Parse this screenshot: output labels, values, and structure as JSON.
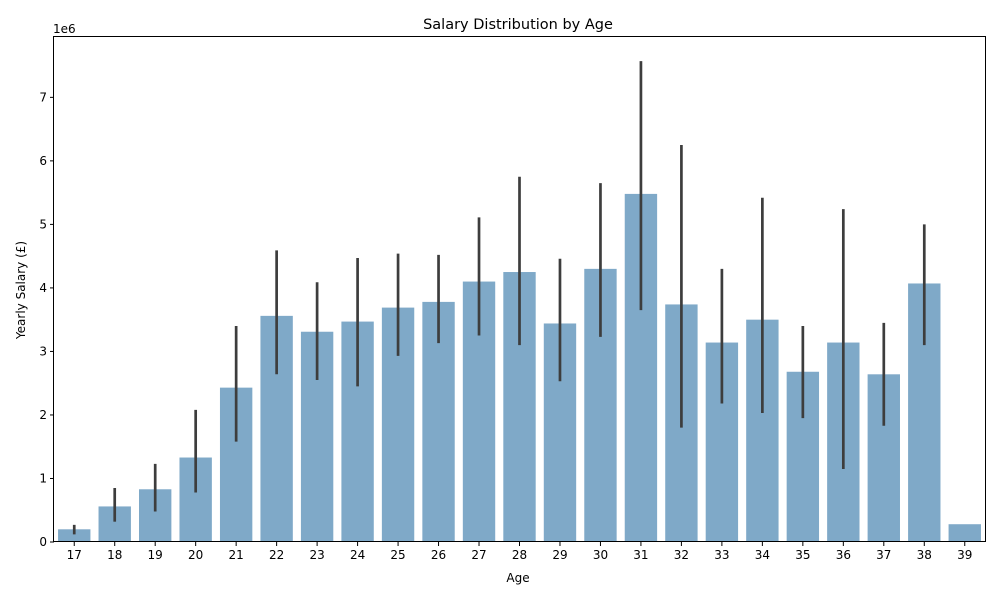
{
  "chart_data": {
    "type": "bar",
    "title": "Salary Distribution by Age",
    "xlabel": "Age",
    "ylabel": "Yearly Salary (£)",
    "y_offset_text": "1e6",
    "y_multiplier": 1000000,
    "categories": [
      "17",
      "18",
      "19",
      "20",
      "21",
      "22",
      "23",
      "24",
      "25",
      "26",
      "27",
      "28",
      "29",
      "30",
      "31",
      "32",
      "33",
      "34",
      "35",
      "36",
      "37",
      "38",
      "39"
    ],
    "values": [
      0.2,
      0.56,
      0.83,
      1.33,
      2.43,
      3.56,
      3.31,
      3.47,
      3.69,
      3.78,
      4.1,
      4.25,
      3.44,
      4.3,
      5.48,
      3.74,
      3.14,
      3.5,
      2.68,
      3.14,
      2.64,
      4.07,
      0.28
    ],
    "ci_low": [
      0.12,
      0.32,
      0.48,
      0.78,
      1.58,
      2.64,
      2.55,
      2.45,
      2.93,
      3.13,
      3.25,
      3.1,
      2.53,
      3.23,
      3.65,
      1.8,
      2.18,
      2.03,
      1.95,
      1.15,
      1.83,
      3.1,
      null
    ],
    "ci_high": [
      0.27,
      0.85,
      1.23,
      2.08,
      3.4,
      4.59,
      4.09,
      4.47,
      4.54,
      4.52,
      5.11,
      5.75,
      4.46,
      5.65,
      7.57,
      6.25,
      4.3,
      5.42,
      3.4,
      5.24,
      3.45,
      5.0,
      null
    ],
    "yticks": [
      0,
      1,
      2,
      3,
      4,
      5,
      6,
      7
    ],
    "ylim": [
      0,
      7.95
    ],
    "grid": false,
    "legend": "none",
    "bar_color": "#7fa9c8",
    "errorbar_color": "#3d3d3d"
  }
}
